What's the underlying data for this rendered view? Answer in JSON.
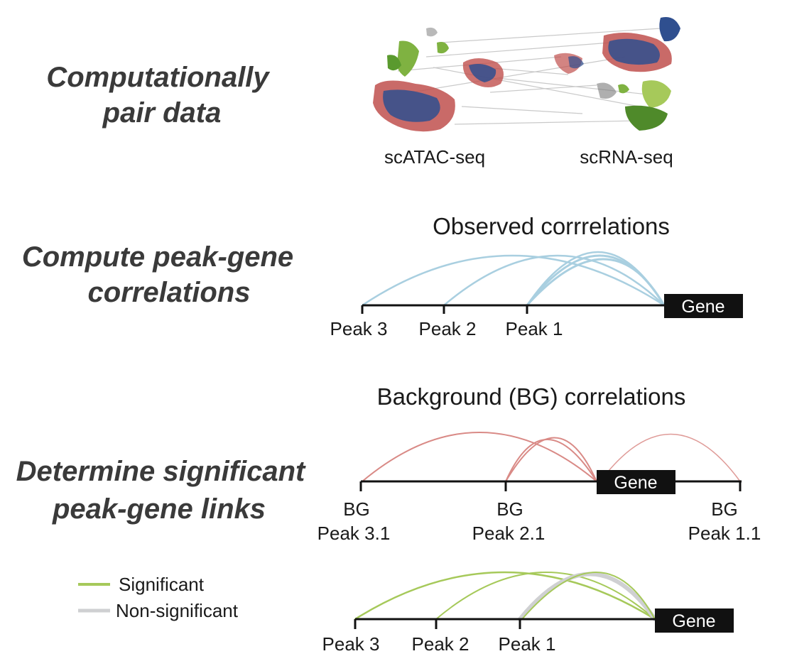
{
  "steps": {
    "pair": {
      "line1": "Computationally",
      "line2": "pair data"
    },
    "compute": {
      "line1": "Compute peak-gene",
      "line2": "correlations"
    },
    "determine": {
      "line1": "Determine significant",
      "line2": "peak-gene links"
    }
  },
  "datasets": {
    "atac": "scATAC-seq",
    "rna": "scRNA-seq"
  },
  "observed": {
    "heading": "Observed  corrrelations",
    "gene": "Gene",
    "peaks": [
      "Peak 3",
      "Peak 2",
      "Peak 1"
    ],
    "arc_color": "#a9cfe0"
  },
  "background": {
    "heading": "Background (BG)  correlations",
    "gene": "Gene",
    "peaks": [
      {
        "top": "BG",
        "bottom": "Peak 3.1"
      },
      {
        "top": "BG",
        "bottom": "Peak 2.1"
      },
      {
        "top": "BG",
        "bottom": "Peak 1.1"
      }
    ],
    "arc_color": "#d98a86"
  },
  "significance": {
    "gene": "Gene",
    "peaks": [
      "Peak 3",
      "Peak 2",
      "Peak 1"
    ],
    "significant_color": "#a6c95a",
    "nonsignificant_color": "#cfd0d2"
  },
  "legend": {
    "significant": "Significant",
    "nonsignificant": "Non-significant"
  },
  "colors": {
    "cluster_green": "#7fb241",
    "cluster_red": "#c0504d",
    "cluster_blue": "#2f4f8f",
    "gene_box": "#111111"
  }
}
